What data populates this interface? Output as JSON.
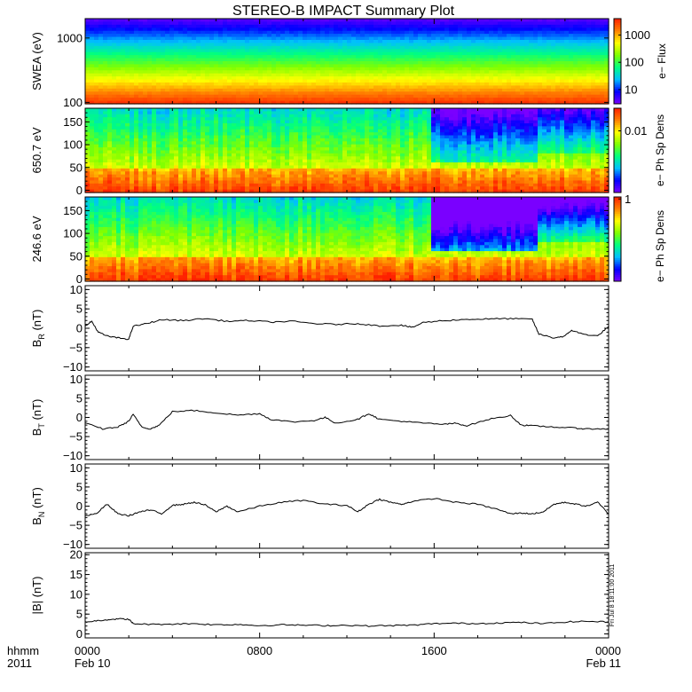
{
  "title": "STEREO-B IMPACT Summary Plot",
  "timestamp_stamp": "Fri Jul  8 18:11:00 2011",
  "time_axis": {
    "row1_label": "hhmm",
    "row2_label": "2011",
    "ticks": [
      {
        "hours": 0,
        "label": "0000",
        "date": "Feb 10"
      },
      {
        "hours": 8,
        "label": "0800",
        "date": ""
      },
      {
        "hours": 16,
        "label": "1600",
        "date": ""
      },
      {
        "hours": 24,
        "label": "0000",
        "date": "Feb 11"
      }
    ],
    "range_hours": [
      0,
      24
    ]
  },
  "colors": {
    "trace": "#000000",
    "colormap": [
      "#7a00ff",
      "#0000ff",
      "#00bfff",
      "#00ff80",
      "#80ff00",
      "#ffff00",
      "#ff8000",
      "#ff2000"
    ]
  },
  "chart_data": [
    {
      "type": "heatmap",
      "ylabel": "SWEA (eV)",
      "y_scale": "log",
      "ylim": [
        95,
        2000
      ],
      "yticks": [
        {
          "v": 100,
          "label": "100"
        },
        {
          "v": 1000,
          "label": "1000"
        }
      ],
      "colorbar": {
        "label": "e− Flux",
        "scale": "log",
        "range": [
          3,
          4000
        ],
        "ticks": [
          {
            "v": 10,
            "label": "10"
          },
          {
            "v": 100,
            "label": "100"
          },
          {
            "v": 1000,
            "label": "1000"
          }
        ]
      }
    },
    {
      "type": "heatmap",
      "ylabel": "650.7 eV",
      "ylim": [
        -5,
        180
      ],
      "yticks": [
        {
          "v": 0,
          "label": "0"
        },
        {
          "v": 50,
          "label": "50"
        },
        {
          "v": 100,
          "label": "100"
        },
        {
          "v": 150,
          "label": "150"
        }
      ],
      "colorbar": {
        "label": "e− Ph Sp Dens",
        "scale": "log",
        "range": [
          0.0005,
          0.03
        ],
        "ticks": [
          {
            "v": 0.01,
            "label": "0.01"
          }
        ]
      }
    },
    {
      "type": "heatmap",
      "ylabel": "246.6 eV",
      "ylim": [
        -5,
        180
      ],
      "yticks": [
        {
          "v": 0,
          "label": "0"
        },
        {
          "v": 50,
          "label": "50"
        },
        {
          "v": 100,
          "label": "100"
        },
        {
          "v": 150,
          "label": "150"
        }
      ],
      "colorbar": {
        "label": "e− Ph Sp Dens",
        "scale": "log",
        "range": [
          0.02,
          1.1
        ],
        "ticks": [
          {
            "v": 1,
            "label": "1"
          }
        ]
      }
    },
    {
      "type": "line",
      "ylabel_main": "B",
      "ylabel_sub": "R",
      "ylabel_unit": "(nT)",
      "ylim": [
        -11,
        11
      ],
      "yticks": [
        {
          "v": -10,
          "label": "−10"
        },
        {
          "v": -5,
          "label": "−5"
        },
        {
          "v": 0,
          "label": "0"
        },
        {
          "v": 5,
          "label": "5"
        },
        {
          "v": 10,
          "label": "10"
        }
      ],
      "x": [
        0,
        0.3,
        0.6,
        1.0,
        1.5,
        2.0,
        2.2,
        2.8,
        3.5,
        4.5,
        5.5,
        6.5,
        7.5,
        8.5,
        9.5,
        10.5,
        11.5,
        12.5,
        13.5,
        14.5,
        15.0,
        15.5,
        16.5,
        17.5,
        18.5,
        19.5,
        20.5,
        20.8,
        21.5,
        22.0,
        22.3,
        22.8,
        23.5,
        24.0
      ],
      "y": [
        0.5,
        1.8,
        -1.0,
        -2.0,
        -2.5,
        -2.8,
        0.5,
        1.2,
        2.2,
        2.0,
        2.5,
        1.8,
        2.0,
        1.6,
        1.8,
        1.2,
        1.0,
        1.2,
        0.6,
        0.8,
        0.2,
        1.5,
        2.0,
        2.3,
        2.4,
        2.5,
        2.3,
        -1.5,
        -2.5,
        -2.0,
        -0.5,
        -1.5,
        -2.0,
        0.5
      ]
    },
    {
      "type": "line",
      "ylabel_main": "B",
      "ylabel_sub": "T",
      "ylabel_unit": "(nT)",
      "ylim": [
        -11,
        11
      ],
      "yticks": [
        {
          "v": -10,
          "label": "−10"
        },
        {
          "v": -5,
          "label": "−5"
        },
        {
          "v": 0,
          "label": "0"
        },
        {
          "v": 5,
          "label": "5"
        },
        {
          "v": 10,
          "label": "10"
        }
      ],
      "x": [
        0,
        0.8,
        1.5,
        2.0,
        2.2,
        2.6,
        3.0,
        3.4,
        4.0,
        5.0,
        6.0,
        7.0,
        8.0,
        8.5,
        9.5,
        10.5,
        11.0,
        11.5,
        12.5,
        13.0,
        13.5,
        14.5,
        15.5,
        16.5,
        17.0,
        17.5,
        18.5,
        19.5,
        20.0,
        20.5,
        21.5,
        22.5,
        23.0,
        24.0
      ],
      "y": [
        -1.5,
        -3.0,
        -2.5,
        -1.0,
        0.8,
        -2.5,
        -3.0,
        -2.0,
        1.5,
        1.8,
        1.2,
        0.6,
        1.0,
        -0.5,
        -1.2,
        -0.8,
        0.0,
        -1.5,
        -0.5,
        1.0,
        -0.5,
        -1.0,
        -1.5,
        -1.8,
        -1.5,
        -2.2,
        -0.5,
        0.5,
        -2.0,
        -2.2,
        -2.5,
        -2.8,
        -3.0,
        -3.0
      ]
    },
    {
      "type": "line",
      "ylabel_main": "B",
      "ylabel_sub": "N",
      "ylabel_unit": "(nT)",
      "ylim": [
        -11,
        11
      ],
      "yticks": [
        {
          "v": -10,
          "label": "−10"
        },
        {
          "v": -5,
          "label": "−5"
        },
        {
          "v": 0,
          "label": "0"
        },
        {
          "v": 5,
          "label": "5"
        },
        {
          "v": 10,
          "label": "10"
        }
      ],
      "x": [
        0,
        0.5,
        1.0,
        1.5,
        2.0,
        2.5,
        3.0,
        3.5,
        4.0,
        4.5,
        5.0,
        5.5,
        6.0,
        6.5,
        7.0,
        8.0,
        9.0,
        10.0,
        11.0,
        12.0,
        12.5,
        13.0,
        13.5,
        14.0,
        14.5,
        15.0,
        16.0,
        17.0,
        18.0,
        19.0,
        19.5,
        20.0,
        20.5,
        21.0,
        21.5,
        22.0,
        22.5,
        23.0,
        23.5,
        24.0
      ],
      "y": [
        -2.5,
        -2.0,
        0.5,
        -2.0,
        -2.5,
        -1.5,
        -1.0,
        -2.0,
        0.2,
        0.5,
        1.0,
        0.3,
        -1.5,
        0.0,
        -1.5,
        0.0,
        1.0,
        1.5,
        0.5,
        0.2,
        -1.5,
        0.5,
        1.8,
        1.0,
        0.5,
        1.2,
        2.0,
        1.0,
        0.5,
        -1.0,
        -2.0,
        -1.8,
        -2.0,
        -1.5,
        0.5,
        1.0,
        0.5,
        0.0,
        1.0,
        -2.0
      ]
    },
    {
      "type": "line",
      "ylabel_main": "|B|",
      "ylabel_unit": "(nT)",
      "ylim": [
        -1,
        20.5
      ],
      "yticks": [
        {
          "v": 0,
          "label": "0"
        },
        {
          "v": 5,
          "label": "5"
        },
        {
          "v": 10,
          "label": "10"
        },
        {
          "v": 15,
          "label": "15"
        },
        {
          "v": 20,
          "label": "20"
        }
      ],
      "x": [
        0,
        0.5,
        1.0,
        1.5,
        2.0,
        2.2,
        3.0,
        4.0,
        5.0,
        6.0,
        7.0,
        8.0,
        9.0,
        10.0,
        11.0,
        12.0,
        13.0,
        14.0,
        15.0,
        16.0,
        17.0,
        18.0,
        19.0,
        20.0,
        21.0,
        22.0,
        23.0,
        24.0
      ],
      "y": [
        3.0,
        3.3,
        3.6,
        3.8,
        3.7,
        2.6,
        2.4,
        2.5,
        2.6,
        2.3,
        2.4,
        2.1,
        2.3,
        2.2,
        2.1,
        2.2,
        2.0,
        2.1,
        2.2,
        2.6,
        2.7,
        2.6,
        2.8,
        2.9,
        2.6,
        3.0,
        3.2,
        3.0
      ]
    }
  ]
}
